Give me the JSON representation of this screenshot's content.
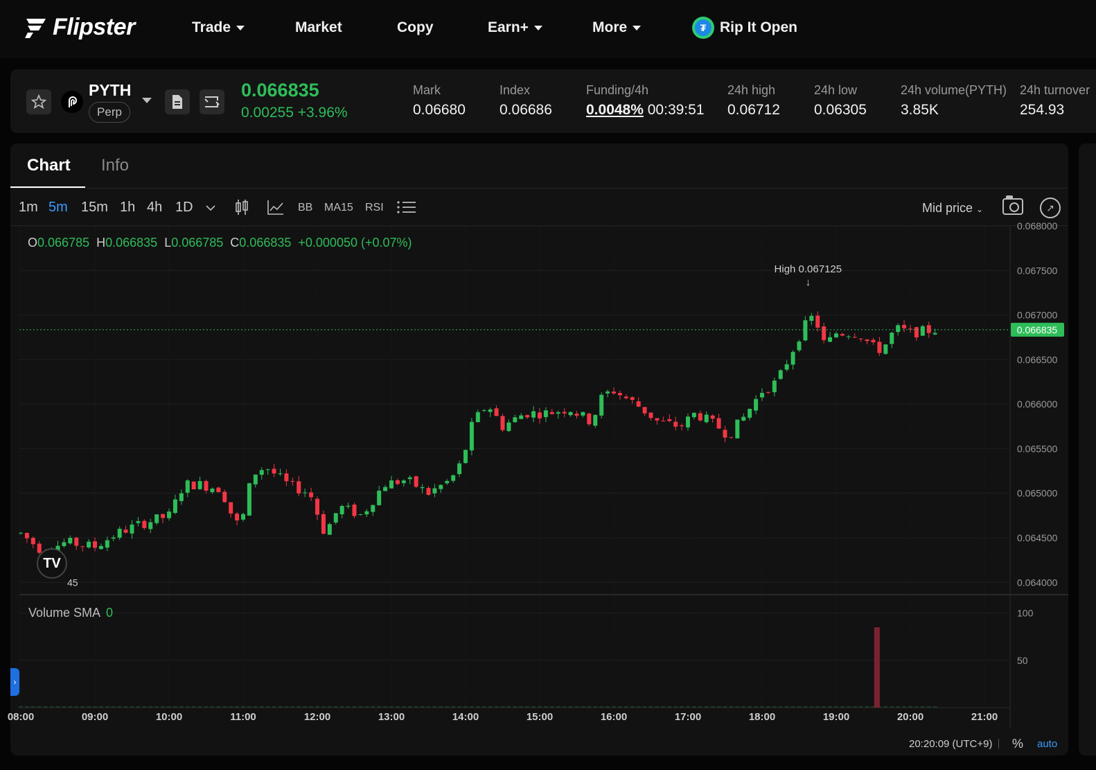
{
  "nav": {
    "brand": "Flipster",
    "items": [
      {
        "label": "Trade",
        "dropdown": true
      },
      {
        "label": "Market",
        "dropdown": false
      },
      {
        "label": "Copy",
        "dropdown": false
      },
      {
        "label": "Earn+",
        "dropdown": true
      },
      {
        "label": "More",
        "dropdown": true
      }
    ],
    "promo": {
      "label": "Rip It Open",
      "icon": "usdt-coin-icon"
    }
  },
  "ticker": {
    "symbol": "PYTH",
    "contract": "Perp",
    "last_price": "0.066835",
    "change": "0.00255 +3.96%",
    "stats": [
      {
        "label": "Mark",
        "value": "0.06680"
      },
      {
        "label": "Index",
        "value": "0.06686"
      },
      {
        "label": "Funding/4h",
        "value": "0.0048%",
        "extra": "00:39:51"
      },
      {
        "label": "24h high",
        "value": "0.06712"
      },
      {
        "label": "24h low",
        "value": "0.06305"
      },
      {
        "label": "24h volume(PYTH)",
        "value": "3.85K"
      },
      {
        "label": "24h turnover",
        "value": "254.93"
      }
    ]
  },
  "tabs": {
    "chart": "Chart",
    "info": "Info"
  },
  "toolbar": {
    "timeframes": [
      "1m",
      "5m",
      "15m",
      "1h",
      "4h",
      "1D"
    ],
    "active_timeframe": "5m",
    "indicators": [
      "BB",
      "MA15",
      "RSI"
    ],
    "price_source": "Mid price"
  },
  "ohlc": {
    "open": "0.066785",
    "high": "0.066835",
    "low": "0.066785",
    "close": "0.066835",
    "change": "+0.000050 (+0.07%)"
  },
  "volume": {
    "label": "Volume SMA",
    "value": "0"
  },
  "footer": {
    "time": "20:20:09 (UTC+9)",
    "pct": "%",
    "auto": "auto"
  },
  "colors": {
    "up": "#2ebd59",
    "down": "#f23645",
    "accent": "#3b9cff",
    "background": "#121212"
  },
  "chart_data": {
    "type": "candlestick",
    "xlabel": "",
    "ylabel": "",
    "x_ticks": [
      "08:00",
      "09:00",
      "10:00",
      "11:00",
      "12:00",
      "13:00",
      "14:00",
      "15:00",
      "16:00",
      "17:00",
      "18:00",
      "19:00",
      "20:00",
      "21:00"
    ],
    "y_ticks": [
      "0.064000",
      "0.064500",
      "0.065000",
      "0.065500",
      "0.066000",
      "0.066500",
      "0.067000",
      "0.067500",
      "0.068000"
    ],
    "ylim": [
      0.0638,
      0.068
    ],
    "current_price": 0.066835,
    "annotations": [
      {
        "text": "High 0.067125",
        "arrow": "↓"
      },
      {
        "text": "45"
      }
    ],
    "volume_ticks": [
      "50",
      "100"
    ],
    "volume_spike": {
      "time": "19:35",
      "value": 85
    }
  }
}
